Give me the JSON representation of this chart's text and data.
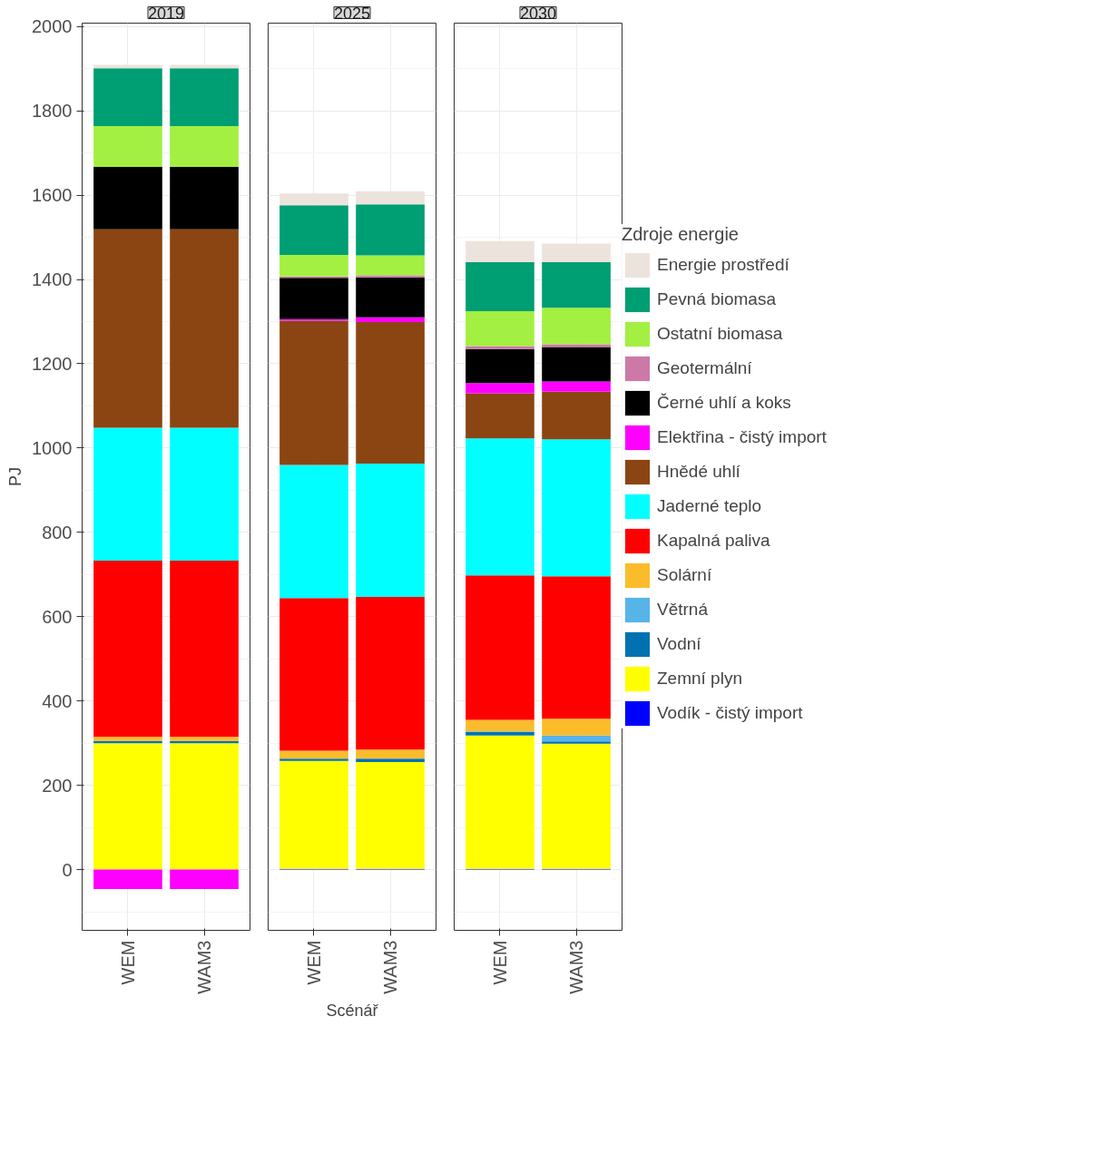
{
  "chart_data": [
    {
      "type": "bar",
      "stacked": true,
      "title": "2019",
      "ylabel": "PJ",
      "categories": [
        "WEM",
        "WAM3"
      ],
      "ylim": [
        -144,
        2008
      ],
      "yticks": [
        0,
        200,
        400,
        600,
        800,
        1000,
        1200,
        1400,
        1600,
        1800,
        2000
      ],
      "grid": true,
      "legend": false,
      "series": [
        {
          "color": "#0000ff",
          "values": [
            0,
            0
          ]
        },
        {
          "color": "#ffff00",
          "values": [
            300,
            300
          ]
        },
        {
          "color": "#0072b2",
          "values": [
            5,
            5
          ]
        },
        {
          "color": "#56b4e9",
          "values": [
            null,
            null
          ]
        },
        {
          "color": "#fbbc2c",
          "values": [
            10,
            10
          ]
        },
        {
          "color": "#ff0000",
          "values": [
            418,
            418
          ]
        },
        {
          "color": "#00ffff",
          "values": [
            315,
            315
          ]
        },
        {
          "color": "#8b4513",
          "values": [
            471,
            471
          ]
        },
        {
          "color": "#ff00ff",
          "values": [
            -46,
            -46
          ]
        },
        {
          "color": "#000000",
          "values": [
            148,
            148
          ]
        },
        {
          "color": "#cc79a7",
          "values": [
            0,
            0
          ]
        },
        {
          "color": "#a3ef42",
          "values": [
            97,
            97
          ]
        },
        {
          "color": "#009e73",
          "values": [
            137,
            137
          ]
        },
        {
          "color": "#ede3dd",
          "values": [
            8,
            8
          ]
        }
      ]
    },
    {
      "type": "bar",
      "stacked": true,
      "title": "2025",
      "xlabel": "Scénář",
      "categories": [
        "WEM",
        "WAM3"
      ],
      "ylim": [
        -144,
        2008
      ],
      "yticks": [
        0,
        200,
        400,
        600,
        800,
        1000,
        1200,
        1400,
        1600,
        1800,
        2000
      ],
      "grid": true,
      "legend": false,
      "tick_labels": "x",
      "series": [
        {
          "color": "#0000ff",
          "values": [
            2,
            2
          ]
        },
        {
          "color": "#ffff00",
          "values": [
            256,
            253
          ]
        },
        {
          "color": "#0072b2",
          "values": [
            5,
            8
          ]
        },
        {
          "color": "#56b4e9",
          "values": [
            null,
            null
          ]
        },
        {
          "color": "#fbbc2c",
          "values": [
            19,
            22
          ]
        },
        {
          "color": "#ff0000",
          "values": [
            362,
            362
          ]
        },
        {
          "color": "#00ffff",
          "values": [
            316,
            316
          ]
        },
        {
          "color": "#8b4513",
          "values": [
            342,
            336
          ]
        },
        {
          "color": "#ff00ff",
          "values": [
            4,
            11
          ]
        },
        {
          "color": "#000000",
          "values": [
            98,
            95
          ]
        },
        {
          "color": "#cc79a7",
          "values": [
            3,
            5
          ]
        },
        {
          "color": "#a3ef42",
          "values": [
            51,
            47
          ]
        },
        {
          "color": "#009e73",
          "values": [
            118,
            121
          ]
        },
        {
          "color": "#ede3dd",
          "values": [
            28,
            31
          ]
        }
      ]
    },
    {
      "type": "bar",
      "stacked": true,
      "title": "2030",
      "categories": [
        "WEM",
        "WAM3"
      ],
      "ylim": [
        -144,
        2008
      ],
      "yticks": [
        0,
        200,
        400,
        600,
        800,
        1000,
        1200,
        1400,
        1600,
        1800,
        2000
      ],
      "grid": true,
      "legend": "right",
      "legend_title": "Zdroje energie",
      "tick_labels": "x",
      "series": [
        {
          "name": "Vodík - čistý import",
          "color": "#0000ff",
          "values": [
            2,
            2
          ]
        },
        {
          "name": "Zemní plyn",
          "color": "#ffff00",
          "values": [
            316,
            297
          ]
        },
        {
          "name": "Vodní",
          "color": "#0072b2",
          "values": [
            8,
            5
          ]
        },
        {
          "name": "Větrná",
          "color": "#56b4e9",
          "values": [
            2,
            14
          ]
        },
        {
          "name": "Solární",
          "color": "#fbbc2c",
          "values": [
            27,
            40
          ]
        },
        {
          "name": "Kapalná paliva",
          "color": "#ff0000",
          "values": [
            343,
            338
          ]
        },
        {
          "name": "Jaderné teplo",
          "color": "#00ffff",
          "values": [
            325,
            325
          ]
        },
        {
          "name": "Hnědé uhlí",
          "color": "#8b4513",
          "values": [
            107,
            113
          ]
        },
        {
          "name": "Elektřina - čistý import",
          "color": "#ff00ff",
          "values": [
            24,
            24
          ]
        },
        {
          "name": "Černé uhlí a koks",
          "color": "#000000",
          "values": [
            81,
            82
          ]
        },
        {
          "name": "Geotermální",
          "color": "#cc79a7",
          "values": [
            7,
            6
          ]
        },
        {
          "name": "Ostatní biomasa",
          "color": "#a3ef42",
          "values": [
            83,
            87
          ]
        },
        {
          "name": "Pevná biomasa",
          "color": "#009e73",
          "values": [
            116,
            108
          ]
        },
        {
          "name": "Energie prostředí",
          "color": "#ede3dd",
          "values": [
            50,
            44
          ]
        }
      ]
    }
  ]
}
